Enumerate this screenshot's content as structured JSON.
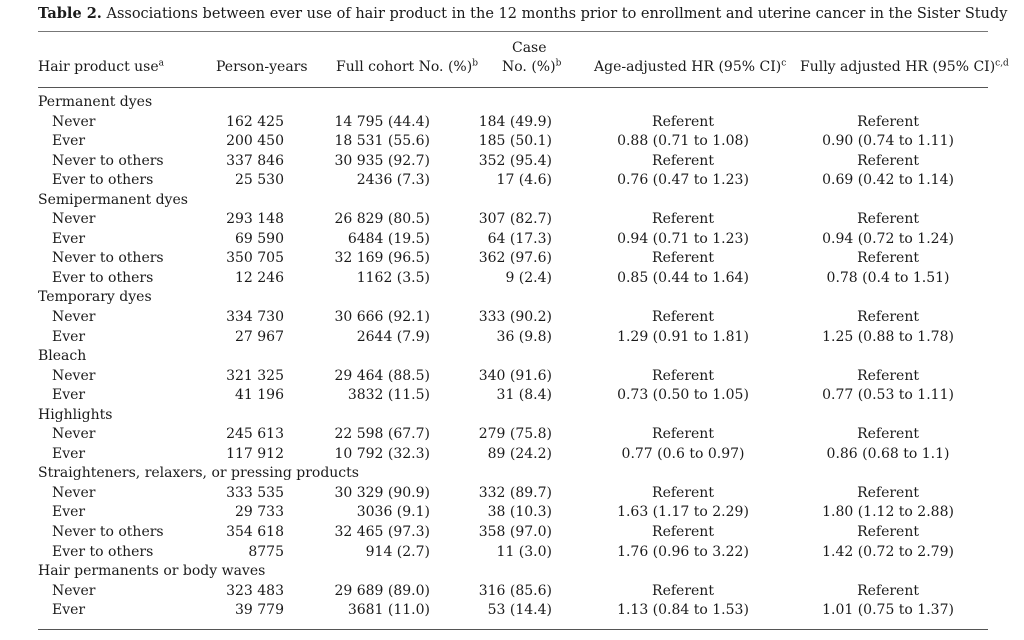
{
  "title_bold": "Table 2.",
  "title_text": " Associations between ever use of hair product in the 12 months prior to enrollment and uterine cancer in the Sister Study",
  "headers": {
    "product": "Hair product use",
    "product_sup": "a",
    "person_years": "Person-years",
    "cohort": "Full cohort No. (%)",
    "cohort_sup": "b",
    "case_line1": "Case",
    "case_line2": "No. (%)",
    "case_sup": "b",
    "age_hr": "Age-adjusted HR (95% CI)",
    "age_hr_sup": "c",
    "full_hr": "Fully adjusted HR (95% CI)",
    "full_hr_sup": "c,d"
  },
  "rows": [
    {
      "type": "group",
      "label": "Permanent dyes"
    },
    {
      "type": "sub",
      "label": "Never",
      "py": "162 425",
      "cohort": "14 795 (44.4)",
      "case": "184 (49.9)",
      "age": "Referent",
      "full": "Referent"
    },
    {
      "type": "sub",
      "label": "Ever",
      "py": "200 450",
      "cohort": "18 531 (55.6)",
      "case": "185 (50.1)",
      "age": "0.88 (0.71 to 1.08)",
      "full": "0.90 (0.74 to 1.11)"
    },
    {
      "type": "sub",
      "label": "Never to others",
      "py": "337 846",
      "cohort": "30 935 (92.7)",
      "case": "352 (95.4)",
      "age": "Referent",
      "full": "Referent"
    },
    {
      "type": "sub",
      "label": "Ever to others",
      "py": "25 530",
      "cohort": "2436 (7.3)",
      "case": "17 (4.6)",
      "age": "0.76 (0.47 to 1.23)",
      "full": "0.69 (0.42 to 1.14)"
    },
    {
      "type": "group",
      "label": "Semipermanent dyes"
    },
    {
      "type": "sub",
      "label": "Never",
      "py": "293 148",
      "cohort": "26 829 (80.5)",
      "case": "307 (82.7)",
      "age": "Referent",
      "full": "Referent"
    },
    {
      "type": "sub",
      "label": "Ever",
      "py": "69 590",
      "cohort": "6484 (19.5)",
      "case": "64 (17.3)",
      "age": "0.94 (0.71 to 1.23)",
      "full": "0.94 (0.72 to 1.24)"
    },
    {
      "type": "sub",
      "label": "Never to others",
      "py": "350 705",
      "cohort": "32 169 (96.5)",
      "case": "362 (97.6)",
      "age": "Referent",
      "full": "Referent"
    },
    {
      "type": "sub",
      "label": "Ever to others",
      "py": "12 246",
      "cohort": "1162 (3.5)",
      "case": "9 (2.4)",
      "age": "0.85 (0.44 to 1.64)",
      "full": "0.78 (0.4 to 1.51)"
    },
    {
      "type": "group",
      "label": "Temporary dyes"
    },
    {
      "type": "sub",
      "label": "Never",
      "py": "334 730",
      "cohort": "30 666 (92.1)",
      "case": "333 (90.2)",
      "age": "Referent",
      "full": "Referent"
    },
    {
      "type": "sub",
      "label": "Ever",
      "py": "27 967",
      "cohort": "2644 (7.9)",
      "case": "36 (9.8)",
      "age": "1.29 (0.91 to 1.81)",
      "full": "1.25 (0.88 to 1.78)"
    },
    {
      "type": "group",
      "label": "Bleach"
    },
    {
      "type": "sub",
      "label": "Never",
      "py": "321 325",
      "cohort": "29 464 (88.5)",
      "case": "340 (91.6)",
      "age": "Referent",
      "full": "Referent"
    },
    {
      "type": "sub",
      "label": "Ever",
      "py": "41 196",
      "cohort": "3832 (11.5)",
      "case": "31 (8.4)",
      "age": "0.73 (0.50 to 1.05)",
      "full": "0.77 (0.53 to 1.11)"
    },
    {
      "type": "group",
      "label": "Highlights"
    },
    {
      "type": "sub",
      "label": "Never",
      "py": "245 613",
      "cohort": "22 598 (67.7)",
      "case": "279 (75.8)",
      "age": "Referent",
      "full": "Referent"
    },
    {
      "type": "sub",
      "label": "Ever",
      "py": "117 912",
      "cohort": "10 792 (32.3)",
      "case": "89 (24.2)",
      "age": "0.77 (0.6 to 0.97)",
      "full": "0.86 (0.68 to 1.1)"
    },
    {
      "type": "group",
      "label": "Straighteners, relaxers, or pressing products"
    },
    {
      "type": "sub",
      "label": "Never",
      "py": "333 535",
      "cohort": "30 329 (90.9)",
      "case": "332 (89.7)",
      "age": "Referent",
      "full": "Referent"
    },
    {
      "type": "sub",
      "label": "Ever",
      "py": "29 733",
      "cohort": "3036 (9.1)",
      "case": "38 (10.3)",
      "age": "1.63 (1.17 to 2.29)",
      "full": "1.80 (1.12 to 2.88)"
    },
    {
      "type": "sub",
      "label": "Never to others",
      "py": "354 618",
      "cohort": "32 465 (97.3)",
      "case": "358 (97.0)",
      "age": "Referent",
      "full": "Referent"
    },
    {
      "type": "sub",
      "label": "Ever to others",
      "py": "8775",
      "cohort": "914 (2.7)",
      "case": "11 (3.0)",
      "age": "1.76 (0.96 to 3.22)",
      "full": "1.42 (0.72 to 2.79)"
    },
    {
      "type": "group",
      "label": "Hair permanents or body waves"
    },
    {
      "type": "sub",
      "label": "Never",
      "py": "323 483",
      "cohort": "29 689 (89.0)",
      "case": "316 (85.6)",
      "age": "Referent",
      "full": "Referent"
    },
    {
      "type": "sub",
      "label": "Ever",
      "py": "39 779",
      "cohort": "3681 (11.0)",
      "case": "53 (14.4)",
      "age": "1.13 (0.84 to 1.53)",
      "full": "1.01 (0.75 to 1.37)"
    }
  ]
}
